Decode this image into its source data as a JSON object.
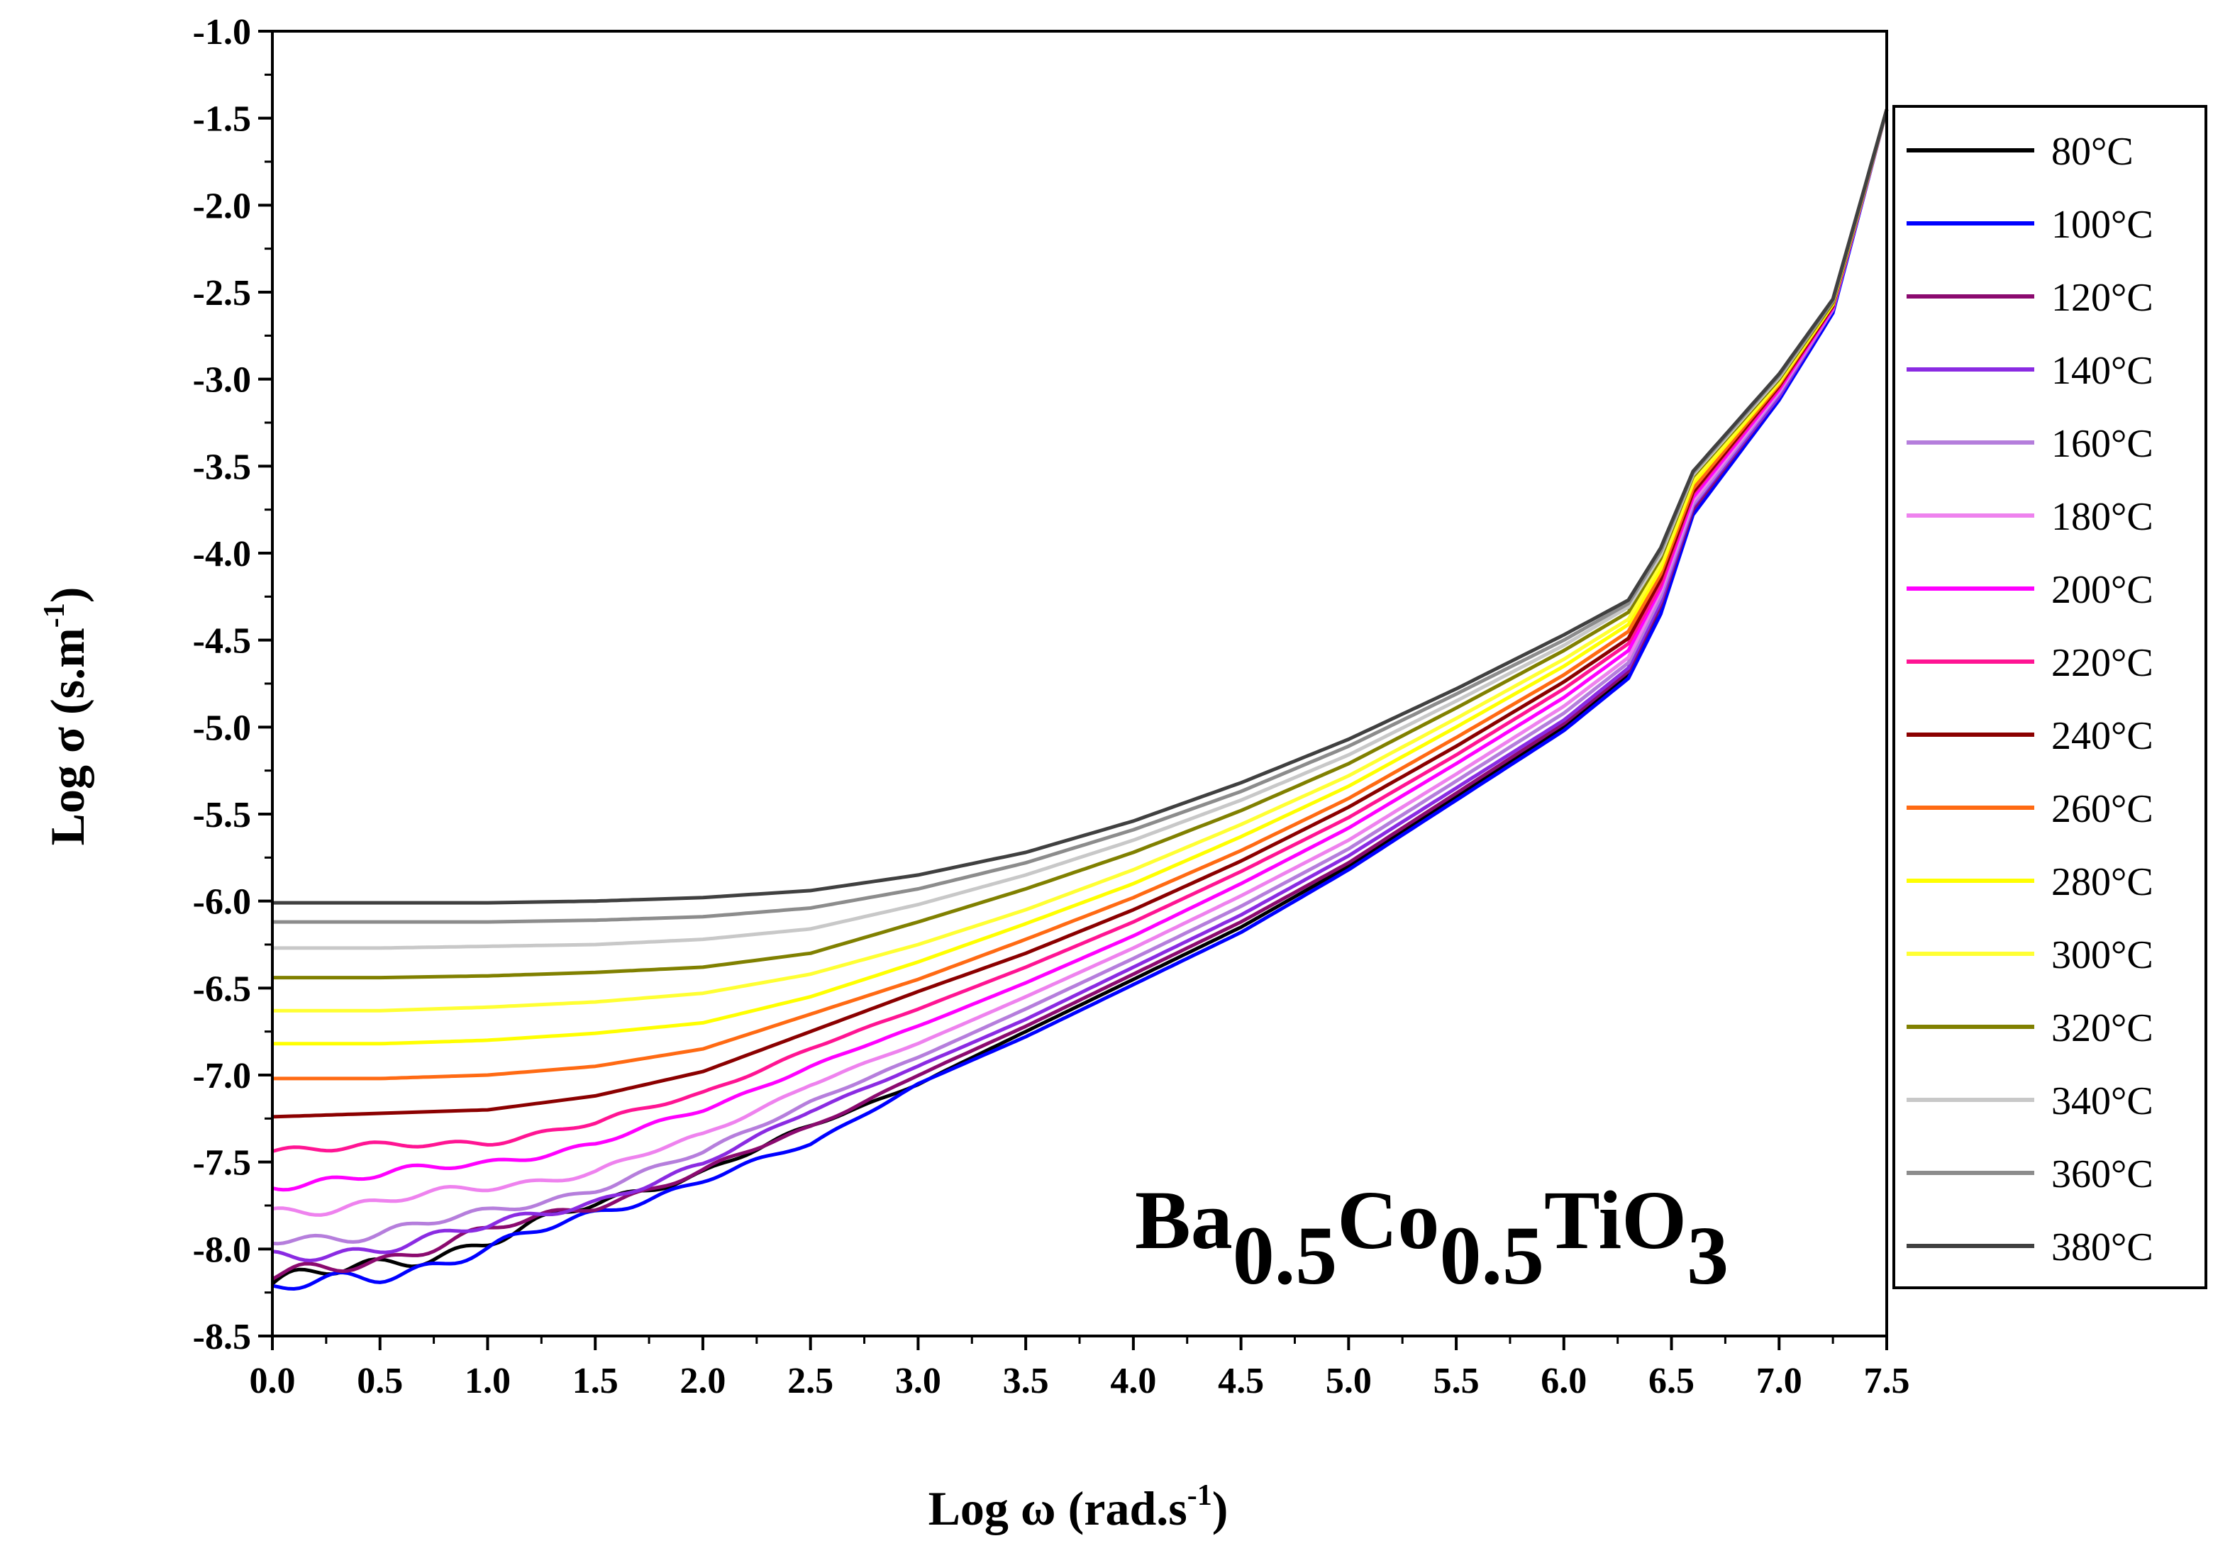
{
  "chart_data": {
    "type": "line",
    "title": "",
    "xlabel": {
      "main": "Log ω (rad.s",
      "sup": "-1",
      "tail": ")"
    },
    "ylabel": {
      "main": "Log σ (s.m",
      "sup": "-1",
      "tail": ")"
    },
    "xlim": [
      0,
      7.5
    ],
    "ylim": [
      -8.5,
      -1.0
    ],
    "xticks": [
      "0.0",
      "0.5",
      "1.0",
      "1.5",
      "2.0",
      "2.5",
      "3.0",
      "3.5",
      "4.0",
      "4.5",
      "5.0",
      "5.5",
      "6.0",
      "6.5",
      "7.0",
      "7.5"
    ],
    "yticks": [
      "-1.0",
      "-1.5",
      "-2.0",
      "-2.5",
      "-3.0",
      "-3.5",
      "-4.0",
      "-4.5",
      "-5.0",
      "-5.5",
      "-6.0",
      "-6.5",
      "-7.0",
      "-7.5",
      "-8.0",
      "-8.5"
    ],
    "annotation": {
      "parts": [
        "Ba",
        "0.5",
        "Co",
        "0.5",
        "TiO",
        "3"
      ]
    },
    "legend_position": "right",
    "x": [
      0,
      0.5,
      1,
      1.5,
      2,
      2.5,
      3,
      3.5,
      4,
      4.5,
      5,
      5.5,
      6,
      6.3,
      6.45,
      6.6,
      7.0,
      7.25,
      7.5
    ],
    "series": [
      {
        "name": "80°C",
        "color": "#000000",
        "values": [
          -8.2,
          -8.1,
          -7.95,
          -7.75,
          -7.55,
          -7.3,
          -7.05,
          -6.75,
          -6.45,
          -6.15,
          -5.8,
          -5.4,
          -5.0,
          -4.7,
          -4.3,
          -3.75,
          -3.1,
          -2.6,
          -1.45
        ]
      },
      {
        "name": "100°C",
        "color": "#0000ff",
        "values": [
          -8.25,
          -8.15,
          -8.0,
          -7.8,
          -7.6,
          -7.4,
          -7.05,
          -6.78,
          -6.48,
          -6.18,
          -5.82,
          -5.42,
          -5.02,
          -4.72,
          -4.35,
          -3.78,
          -3.12,
          -2.62,
          -1.45
        ]
      },
      {
        "name": "120°C",
        "color": "#8b0a6f",
        "values": [
          -8.18,
          -8.05,
          -7.9,
          -7.75,
          -7.55,
          -7.3,
          -7.0,
          -6.72,
          -6.42,
          -6.12,
          -5.78,
          -5.38,
          -4.98,
          -4.68,
          -4.3,
          -3.75,
          -3.1,
          -2.6,
          -1.45
        ]
      },
      {
        "name": "140°C",
        "color": "#8a2be2",
        "values": [
          -8.07,
          -7.98,
          -7.88,
          -7.72,
          -7.52,
          -7.2,
          -6.95,
          -6.68,
          -6.38,
          -6.08,
          -5.74,
          -5.35,
          -4.96,
          -4.66,
          -4.28,
          -3.73,
          -3.1,
          -2.6,
          -1.45
        ]
      },
      {
        "name": "160°C",
        "color": "#b57edc",
        "values": [
          -7.95,
          -7.9,
          -7.8,
          -7.65,
          -7.45,
          -7.15,
          -6.9,
          -6.62,
          -6.33,
          -6.03,
          -5.7,
          -5.31,
          -4.92,
          -4.63,
          -4.25,
          -3.72,
          -3.08,
          -2.6,
          -1.45
        ]
      },
      {
        "name": "180°C",
        "color": "#ee82ee",
        "values": [
          -7.78,
          -7.73,
          -7.65,
          -7.55,
          -7.35,
          -7.05,
          -6.82,
          -6.55,
          -6.27,
          -5.97,
          -5.65,
          -5.27,
          -4.88,
          -4.6,
          -4.22,
          -3.7,
          -3.07,
          -2.59,
          -1.45
        ]
      },
      {
        "name": "200°C",
        "color": "#ff00ff",
        "values": [
          -7.62,
          -7.58,
          -7.5,
          -7.4,
          -7.2,
          -6.95,
          -6.72,
          -6.47,
          -6.2,
          -5.9,
          -5.58,
          -5.21,
          -4.83,
          -4.56,
          -4.2,
          -3.68,
          -3.06,
          -2.59,
          -1.45
        ]
      },
      {
        "name": "220°C",
        "color": "#ff1493",
        "values": [
          -7.42,
          -7.42,
          -7.38,
          -7.28,
          -7.1,
          -6.85,
          -6.62,
          -6.38,
          -6.12,
          -5.83,
          -5.52,
          -5.16,
          -4.78,
          -4.52,
          -4.18,
          -3.66,
          -3.05,
          -2.58,
          -1.45
        ]
      },
      {
        "name": "240°C",
        "color": "#8b0000",
        "values": [
          -7.24,
          -7.22,
          -7.2,
          -7.12,
          -6.98,
          -6.75,
          -6.52,
          -6.3,
          -6.05,
          -5.77,
          -5.46,
          -5.11,
          -4.74,
          -4.49,
          -4.15,
          -3.65,
          -3.04,
          -2.58,
          -1.45
        ]
      },
      {
        "name": "260°C",
        "color": "#ff6a13",
        "values": [
          -7.02,
          -7.02,
          -7.0,
          -6.95,
          -6.85,
          -6.65,
          -6.45,
          -6.22,
          -5.98,
          -5.71,
          -5.41,
          -5.06,
          -4.7,
          -4.45,
          -4.12,
          -3.63,
          -3.03,
          -2.57,
          -1.45
        ]
      },
      {
        "name": "280°C",
        "color": "#ffff00",
        "values": [
          -6.82,
          -6.82,
          -6.8,
          -6.76,
          -6.7,
          -6.55,
          -6.35,
          -6.13,
          -5.9,
          -5.63,
          -5.34,
          -5.0,
          -4.65,
          -4.41,
          -4.09,
          -3.6,
          -3.02,
          -2.57,
          -1.45
        ]
      },
      {
        "name": "300°C",
        "color": "#ffff33",
        "values": [
          -6.63,
          -6.63,
          -6.61,
          -6.58,
          -6.53,
          -6.42,
          -6.25,
          -6.05,
          -5.82,
          -5.56,
          -5.28,
          -4.95,
          -4.61,
          -4.38,
          -4.06,
          -3.58,
          -3.01,
          -2.56,
          -1.45
        ]
      },
      {
        "name": "320°C",
        "color": "#808000",
        "values": [
          -6.44,
          -6.44,
          -6.43,
          -6.41,
          -6.38,
          -6.3,
          -6.12,
          -5.93,
          -5.72,
          -5.48,
          -5.21,
          -4.89,
          -4.56,
          -4.34,
          -4.03,
          -3.56,
          -3.0,
          -2.56,
          -1.45
        ]
      },
      {
        "name": "340°C",
        "color": "#c8c8c8",
        "values": [
          -6.27,
          -6.27,
          -6.26,
          -6.25,
          -6.22,
          -6.16,
          -6.02,
          -5.85,
          -5.65,
          -5.42,
          -5.16,
          -4.85,
          -4.53,
          -4.31,
          -4.01,
          -3.55,
          -2.99,
          -2.55,
          -1.45
        ]
      },
      {
        "name": "360°C",
        "color": "#8c8c8c",
        "values": [
          -6.12,
          -6.12,
          -6.12,
          -6.11,
          -6.09,
          -6.04,
          -5.93,
          -5.78,
          -5.59,
          -5.37,
          -5.11,
          -4.81,
          -4.5,
          -4.29,
          -3.99,
          -3.54,
          -2.98,
          -2.55,
          -1.45
        ]
      },
      {
        "name": "380°C",
        "color": "#404040",
        "values": [
          -6.01,
          -6.01,
          -6.01,
          -6.0,
          -5.98,
          -5.94,
          -5.85,
          -5.72,
          -5.54,
          -5.32,
          -5.07,
          -4.78,
          -4.47,
          -4.27,
          -3.97,
          -3.53,
          -2.97,
          -2.54,
          -1.45
        ]
      }
    ]
  }
}
